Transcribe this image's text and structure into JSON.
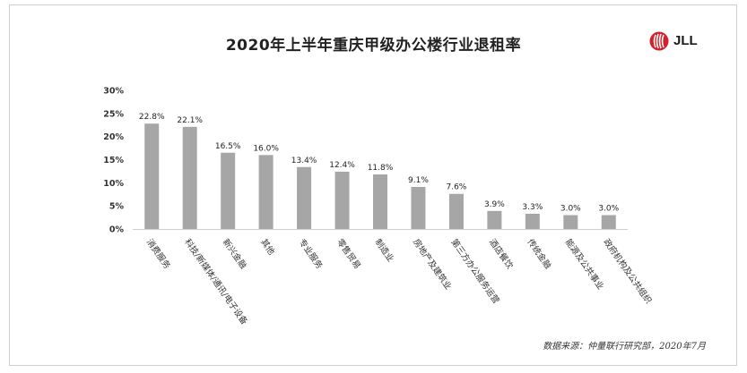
{
  "title": "2020年上半年重庆甲级办公楼行业退租率",
  "logo": {
    "text": "JLL",
    "color": "#d4202b"
  },
  "source": "数据来源：仲量联行研究部，2020年7月",
  "chart_data": {
    "type": "bar",
    "categories": [
      "消费服务",
      "科技/新媒体/通讯/电子设备",
      "新兴金融",
      "其他",
      "专业服务",
      "零售贸易",
      "制造业",
      "房地产及建筑业",
      "第三方办公服务运营",
      "酒店餐饮",
      "传统金融",
      "能源及公共事业",
      "政府机构及公共组织"
    ],
    "values": [
      22.8,
      22.1,
      16.5,
      16.0,
      13.4,
      12.4,
      11.8,
      9.1,
      7.6,
      3.9,
      3.3,
      3.0,
      3.0
    ],
    "value_labels": [
      "22.8%",
      "22.1%",
      "16.5%",
      "16.0%",
      "13.4%",
      "12.4%",
      "11.8%",
      "9.1%",
      "7.6%",
      "3.9%",
      "3.3%",
      "3.0%",
      "3.0%"
    ],
    "yticks": [
      "0%",
      "5%",
      "10%",
      "15%",
      "20%",
      "25%",
      "30%"
    ],
    "ylim": [
      0,
      30
    ],
    "ytick_step": 5,
    "bar_color": "#a6a6a6",
    "grid": false,
    "xlabel": "",
    "ylabel": ""
  }
}
